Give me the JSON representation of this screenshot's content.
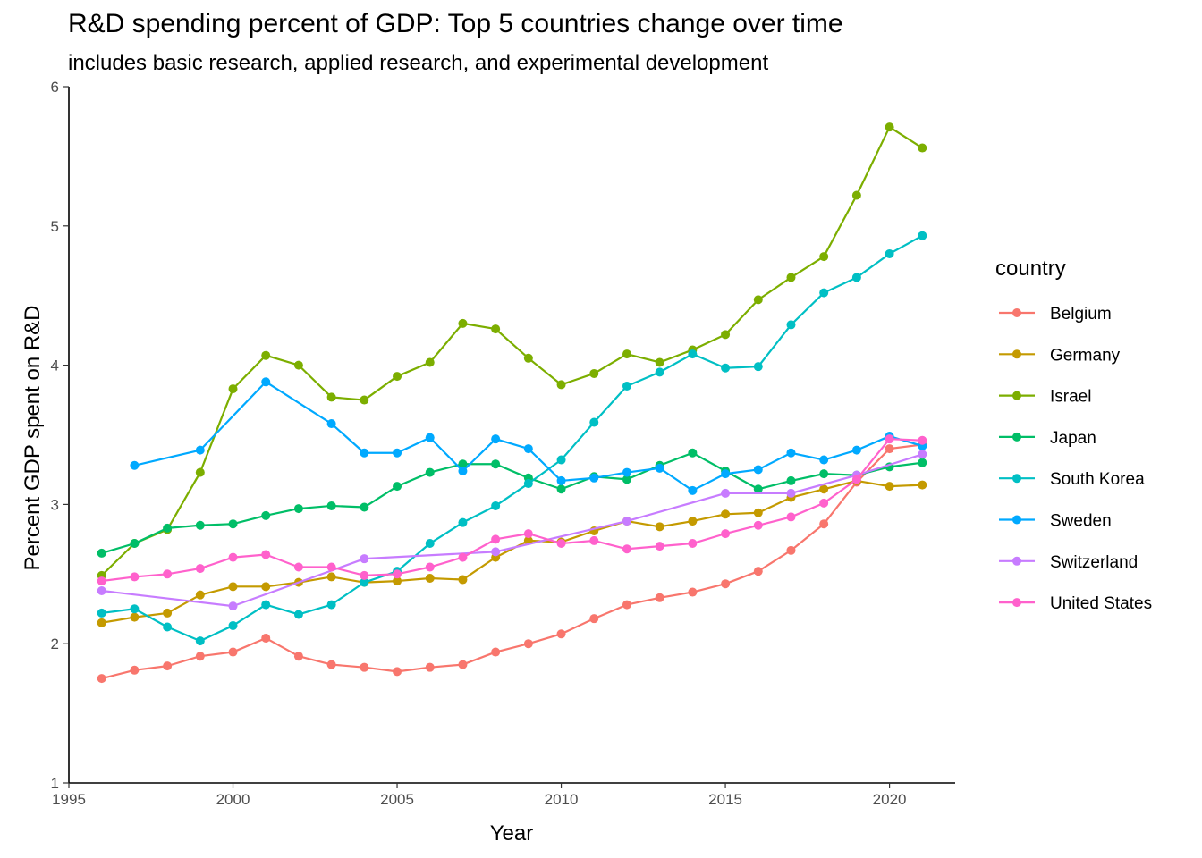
{
  "chart_data": {
    "type": "line",
    "title": "R&D spending percent of GDP: Top 5 countries change over time",
    "subtitle": "includes basic research, applied research, and experimental development",
    "xlabel": "Year",
    "ylabel": "Percent GDP spent on R&D",
    "xlim": [
      1995,
      2022
    ],
    "ylim": [
      1,
      6
    ],
    "x_ticks": [
      1995,
      2000,
      2005,
      2010,
      2015,
      2020
    ],
    "y_ticks": [
      1,
      2,
      3,
      4,
      5,
      6
    ],
    "grid": false,
    "legend_title": "country",
    "legend_position": "right",
    "series": [
      {
        "name": "Belgium",
        "color": "#F8766D",
        "x": [
          1996,
          1997,
          1998,
          1999,
          2000,
          2001,
          2002,
          2003,
          2004,
          2005,
          2006,
          2007,
          2008,
          2009,
          2010,
          2011,
          2012,
          2013,
          2014,
          2015,
          2016,
          2017,
          2018,
          2019,
          2020,
          2021
        ],
        "y": [
          1.75,
          1.81,
          1.84,
          1.91,
          1.94,
          2.04,
          1.91,
          1.85,
          1.83,
          1.8,
          1.83,
          1.85,
          1.94,
          2.0,
          2.07,
          2.18,
          2.28,
          2.33,
          2.37,
          2.43,
          2.52,
          2.67,
          2.86,
          3.16,
          3.4,
          3.43
        ]
      },
      {
        "name": "Germany",
        "color": "#C49A00",
        "x": [
          1996,
          1997,
          1998,
          1999,
          2000,
          2001,
          2002,
          2003,
          2004,
          2005,
          2006,
          2007,
          2008,
          2009,
          2010,
          2011,
          2012,
          2013,
          2014,
          2015,
          2016,
          2017,
          2018,
          2019,
          2020,
          2021
        ],
        "y": [
          2.15,
          2.19,
          2.22,
          2.35,
          2.41,
          2.41,
          2.44,
          2.48,
          2.44,
          2.45,
          2.47,
          2.46,
          2.62,
          2.74,
          2.73,
          2.81,
          2.88,
          2.84,
          2.88,
          2.93,
          2.94,
          3.05,
          3.11,
          3.17,
          3.13,
          3.14
        ]
      },
      {
        "name": "Israel",
        "color": "#7CAE00",
        "x": [
          1996,
          1997,
          1998,
          1999,
          2000,
          2001,
          2002,
          2003,
          2004,
          2005,
          2006,
          2007,
          2008,
          2009,
          2010,
          2011,
          2012,
          2013,
          2014,
          2015,
          2016,
          2017,
          2018,
          2019,
          2020,
          2021
        ],
        "y": [
          2.49,
          2.72,
          2.82,
          3.23,
          3.83,
          4.07,
          4.0,
          3.77,
          3.75,
          3.92,
          4.02,
          4.3,
          4.26,
          4.05,
          3.86,
          3.94,
          4.08,
          4.02,
          4.11,
          4.22,
          4.47,
          4.63,
          4.78,
          5.22,
          5.71,
          5.56
        ]
      },
      {
        "name": "Japan",
        "color": "#00BE67",
        "x": [
          1996,
          1997,
          1998,
          1999,
          2000,
          2001,
          2002,
          2003,
          2004,
          2005,
          2006,
          2007,
          2008,
          2009,
          2010,
          2011,
          2012,
          2013,
          2014,
          2015,
          2016,
          2017,
          2018,
          2019,
          2020,
          2021
        ],
        "y": [
          2.65,
          2.72,
          2.83,
          2.85,
          2.86,
          2.92,
          2.97,
          2.99,
          2.98,
          3.13,
          3.23,
          3.29,
          3.29,
          3.19,
          3.11,
          3.2,
          3.18,
          3.28,
          3.37,
          3.24,
          3.11,
          3.17,
          3.22,
          3.21,
          3.27,
          3.3
        ]
      },
      {
        "name": "South Korea",
        "color": "#00BFC4",
        "x": [
          1996,
          1997,
          1998,
          1999,
          2000,
          2001,
          2002,
          2003,
          2004,
          2005,
          2006,
          2007,
          2008,
          2009,
          2010,
          2011,
          2012,
          2013,
          2014,
          2015,
          2016,
          2017,
          2018,
          2019,
          2020,
          2021
        ],
        "y": [
          2.22,
          2.25,
          2.12,
          2.02,
          2.13,
          2.28,
          2.21,
          2.28,
          2.44,
          2.52,
          2.72,
          2.87,
          2.99,
          3.15,
          3.32,
          3.59,
          3.85,
          3.95,
          4.08,
          3.98,
          3.99,
          4.29,
          4.52,
          4.63,
          4.8,
          4.93
        ]
      },
      {
        "name": "Sweden",
        "color": "#00A9FF",
        "x": [
          1997,
          1999,
          2001,
          2003,
          2004,
          2005,
          2006,
          2007,
          2008,
          2009,
          2010,
          2011,
          2012,
          2013,
          2014,
          2015,
          2016,
          2017,
          2018,
          2019,
          2020,
          2021
        ],
        "y": [
          3.28,
          3.39,
          3.88,
          3.58,
          3.37,
          3.37,
          3.48,
          3.24,
          3.47,
          3.4,
          3.17,
          3.19,
          3.23,
          3.26,
          3.1,
          3.22,
          3.25,
          3.37,
          3.32,
          3.39,
          3.49,
          3.42
        ]
      },
      {
        "name": "Switzerland",
        "color": "#C77CFF",
        "x": [
          1996,
          2000,
          2004,
          2008,
          2012,
          2015,
          2017,
          2019,
          2021
        ],
        "y": [
          2.38,
          2.27,
          2.61,
          2.66,
          2.88,
          3.08,
          3.08,
          3.21,
          3.36
        ]
      },
      {
        "name": "United States",
        "color": "#FF61CC",
        "x": [
          1996,
          1997,
          1998,
          1999,
          2000,
          2001,
          2002,
          2003,
          2004,
          2005,
          2006,
          2007,
          2008,
          2009,
          2010,
          2011,
          2012,
          2013,
          2014,
          2015,
          2016,
          2017,
          2018,
          2019,
          2020,
          2021
        ],
        "y": [
          2.45,
          2.48,
          2.5,
          2.54,
          2.62,
          2.64,
          2.55,
          2.55,
          2.49,
          2.5,
          2.55,
          2.62,
          2.75,
          2.79,
          2.72,
          2.74,
          2.68,
          2.7,
          2.72,
          2.79,
          2.85,
          2.91,
          3.01,
          3.18,
          3.47,
          3.46
        ]
      }
    ]
  }
}
